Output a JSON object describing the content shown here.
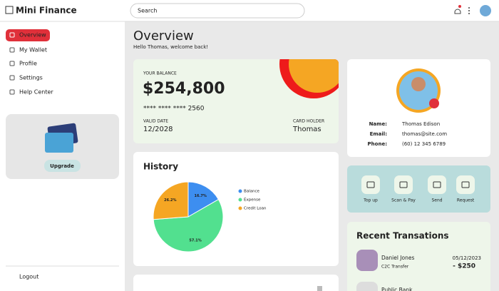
{
  "app": {
    "name": "Mini Finance",
    "search_placeholder": "Search"
  },
  "sidebar": {
    "menu": [
      "Overview",
      "My Wallet",
      "Profile",
      "Settings",
      "Help Center"
    ],
    "upgrade": "Upgrade",
    "logout": "Logout"
  },
  "header": {
    "title": "Overview",
    "subtitle": "Hello Thomas, welcome back!"
  },
  "balance_card": {
    "label": "YOUR BALANCE",
    "amount": "$254,800",
    "card_number": "**** **** **** 2560",
    "valid_date_label": "VALID DATE",
    "valid_date": "12/2028",
    "holder_label": "CARD HOLDER",
    "holder": "Thomas"
  },
  "chart_data": {
    "type": "pie",
    "title": "History",
    "categories": [
      "Balance",
      "Expense",
      "Credit Loan"
    ],
    "values": [
      16.7,
      57.1,
      26.2
    ],
    "value_labels": [
      "16.7%",
      "57.1%",
      "26.2%"
    ],
    "colors": [
      "#3d8ef0",
      "#52e08f",
      "#f5a623"
    ]
  },
  "profile": {
    "fields": [
      {
        "label": "Name:",
        "value": "Thomas Edison"
      },
      {
        "label": "Email:",
        "value": "thomas@site.com"
      },
      {
        "label": "Phone:",
        "value": "(60) 12 345 6789"
      }
    ]
  },
  "actions": [
    "Top up",
    "Scan & Pay",
    "Send",
    "Request"
  ],
  "transactions": {
    "title": "Recent Transations",
    "items": [
      {
        "name": "Daniel Jones",
        "type": "C2C Transfer",
        "date": "05/12/2023",
        "amount": "- $250"
      },
      {
        "name": "Public Bank"
      }
    ]
  }
}
